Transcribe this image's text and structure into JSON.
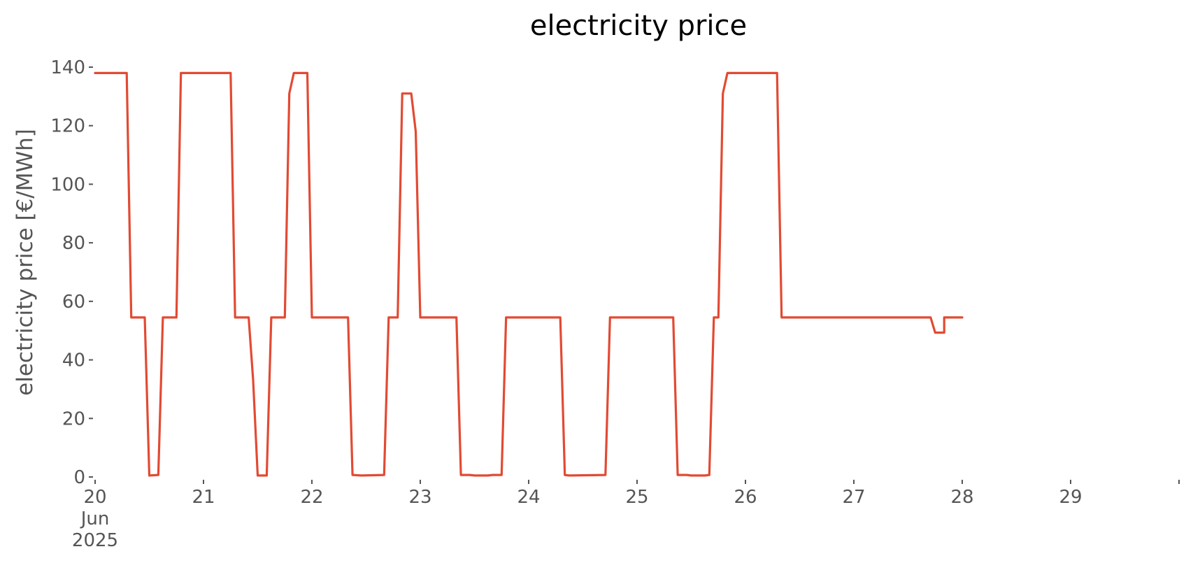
{
  "chart_data": {
    "type": "line",
    "title": "electricity price",
    "xlabel": "",
    "ylabel": "electricity price [€/MWh]",
    "ylim": [
      0,
      140
    ],
    "yticks": [
      0,
      20,
      40,
      60,
      80,
      100,
      120,
      140
    ],
    "xlim": [
      "2025-06-20 00:00",
      "2025-06-30 00:00"
    ],
    "xtick_labels": [
      {
        "at": "2025-06-20",
        "lines": [
          "20",
          "Jun",
          "2025"
        ]
      },
      {
        "at": "2025-06-21",
        "lines": [
          "21"
        ]
      },
      {
        "at": "2025-06-22",
        "lines": [
          "22"
        ]
      },
      {
        "at": "2025-06-23",
        "lines": [
          "23"
        ]
      },
      {
        "at": "2025-06-24",
        "lines": [
          "24"
        ]
      },
      {
        "at": "2025-06-25",
        "lines": [
          "25"
        ]
      },
      {
        "at": "2025-06-26",
        "lines": [
          "26"
        ]
      },
      {
        "at": "2025-06-27",
        "lines": [
          "27"
        ]
      },
      {
        "at": "2025-06-28",
        "lines": [
          "28"
        ]
      },
      {
        "at": "2025-06-29",
        "lines": [
          "29"
        ]
      },
      {
        "at": "2025-06-30",
        "lines": [
          ""
        ]
      }
    ],
    "grid": false,
    "colors": {
      "line": "#e24a33"
    },
    "series": [
      {
        "points": [
          [
            "2025-06-20 00:00",
            138
          ],
          [
            "2025-06-20 07:00",
            138
          ],
          [
            "2025-06-20 08:00",
            54.5
          ],
          [
            "2025-06-20 11:00",
            54.5
          ],
          [
            "2025-06-20 12:00",
            0.5
          ],
          [
            "2025-06-20 14:00",
            0.7
          ],
          [
            "2025-06-20 15:00",
            54.5
          ],
          [
            "2025-06-20 18:00",
            54.5
          ],
          [
            "2025-06-20 19:00",
            138
          ],
          [
            "2025-06-21 06:00",
            138
          ],
          [
            "2025-06-21 07:00",
            54.5
          ],
          [
            "2025-06-21 10:00",
            54.5
          ],
          [
            "2025-06-21 11:00",
            33
          ],
          [
            "2025-06-21 12:00",
            0.5
          ],
          [
            "2025-06-21 14:00",
            0.5
          ],
          [
            "2025-06-21 15:00",
            54.5
          ],
          [
            "2025-06-21 18:00",
            54.5
          ],
          [
            "2025-06-21 19:00",
            131
          ],
          [
            "2025-06-21 20:00",
            138
          ],
          [
            "2025-06-21 23:00",
            138
          ],
          [
            "2025-06-22 00:00",
            54.5
          ],
          [
            "2025-06-22 08:00",
            54.5
          ],
          [
            "2025-06-22 09:00",
            0.7
          ],
          [
            "2025-06-22 11:00",
            0.5
          ],
          [
            "2025-06-22 16:00",
            0.7
          ],
          [
            "2025-06-22 17:00",
            54.5
          ],
          [
            "2025-06-22 19:00",
            54.5
          ],
          [
            "2025-06-22 20:00",
            131
          ],
          [
            "2025-06-22 22:00",
            131
          ],
          [
            "2025-06-22 23:00",
            118
          ],
          [
            "2025-06-23 00:00",
            54.5
          ],
          [
            "2025-06-23 08:00",
            54.5
          ],
          [
            "2025-06-23 09:00",
            0.7
          ],
          [
            "2025-06-23 11:00",
            0.7
          ],
          [
            "2025-06-23 12:00",
            0.5
          ],
          [
            "2025-06-23 15:00",
            0.5
          ],
          [
            "2025-06-23 16:00",
            0.7
          ],
          [
            "2025-06-23 18:00",
            0.7
          ],
          [
            "2025-06-23 19:00",
            54.5
          ],
          [
            "2025-06-24 07:00",
            54.5
          ],
          [
            "2025-06-24 08:00",
            0.7
          ],
          [
            "2025-06-24 09:00",
            0.5
          ],
          [
            "2025-06-24 17:00",
            0.7
          ],
          [
            "2025-06-24 18:00",
            54.5
          ],
          [
            "2025-06-25 08:00",
            54.5
          ],
          [
            "2025-06-25 09:00",
            0.7
          ],
          [
            "2025-06-25 11:00",
            0.7
          ],
          [
            "2025-06-25 12:00",
            0.5
          ],
          [
            "2025-06-25 15:00",
            0.5
          ],
          [
            "2025-06-25 16:00",
            0.7
          ],
          [
            "2025-06-25 17:00",
            54.5
          ],
          [
            "2025-06-25 18:00",
            54.5
          ],
          [
            "2025-06-25 19:00",
            131
          ],
          [
            "2025-06-25 20:00",
            138
          ],
          [
            "2025-06-26 07:00",
            138
          ],
          [
            "2025-06-26 08:00",
            54.5
          ],
          [
            "2025-06-27 17:00",
            54.5
          ],
          [
            "2025-06-27 18:00",
            49.3
          ],
          [
            "2025-06-27 20:00",
            49.3
          ],
          [
            "2025-06-27 21:00",
            54.5
          ],
          [
            "2025-06-27 23:00",
            54.5
          ],
          [
            "2025-06-28 00:00",
            54.5
          ],
          [
            "2025-06-27 20:00",
            54.5
          ]
        ]
      }
    ]
  }
}
